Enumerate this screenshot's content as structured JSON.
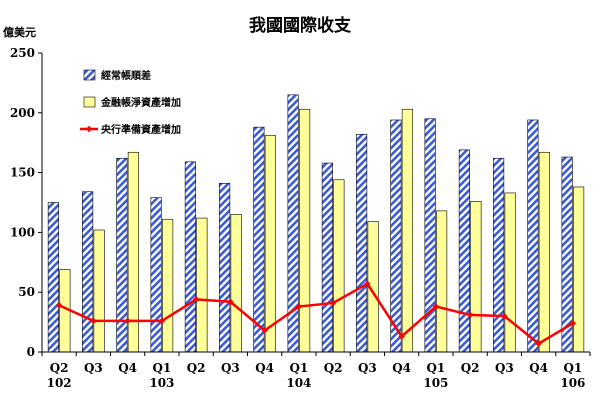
{
  "chart_data": {
    "type": "bar",
    "title": "我國國際收支",
    "ylabel": "億美元",
    "ylim": [
      0,
      250
    ],
    "yticks": [
      0,
      50,
      100,
      150,
      200,
      250
    ],
    "grid": false,
    "legend_position": "top-left",
    "x_quarter_labels": [
      "Q2",
      "Q3",
      "Q4",
      "Q1",
      "Q2",
      "Q3",
      "Q4",
      "Q1",
      "Q2",
      "Q3",
      "Q4",
      "Q1",
      "Q2",
      "Q3",
      "Q4",
      "Q1"
    ],
    "x_year_labels": [
      "102",
      "",
      "",
      "103",
      "",
      "",
      "",
      "104",
      "",
      "",
      "",
      "105",
      "",
      "",
      "",
      "106"
    ],
    "series": [
      {
        "name": "經常帳順差",
        "kind": "bar",
        "color": "#3b5bd6",
        "pattern": "diagonal-stripes",
        "values": [
          125,
          134,
          162,
          129,
          159,
          141,
          188,
          215,
          158,
          182,
          194,
          195,
          169,
          162,
          194,
          163
        ]
      },
      {
        "name": "金融帳淨資產增加",
        "kind": "bar",
        "color": "#ffff99",
        "values": [
          69,
          102,
          167,
          111,
          112,
          115,
          181,
          203,
          144,
          109,
          203,
          118,
          126,
          133,
          167,
          138
        ]
      },
      {
        "name": "央行準備資產增加",
        "kind": "line",
        "color": "#ff0000",
        "values": [
          39,
          26,
          26,
          26,
          44,
          42,
          18,
          38,
          41,
          57,
          13,
          38,
          31,
          30,
          7,
          24
        ]
      }
    ]
  }
}
